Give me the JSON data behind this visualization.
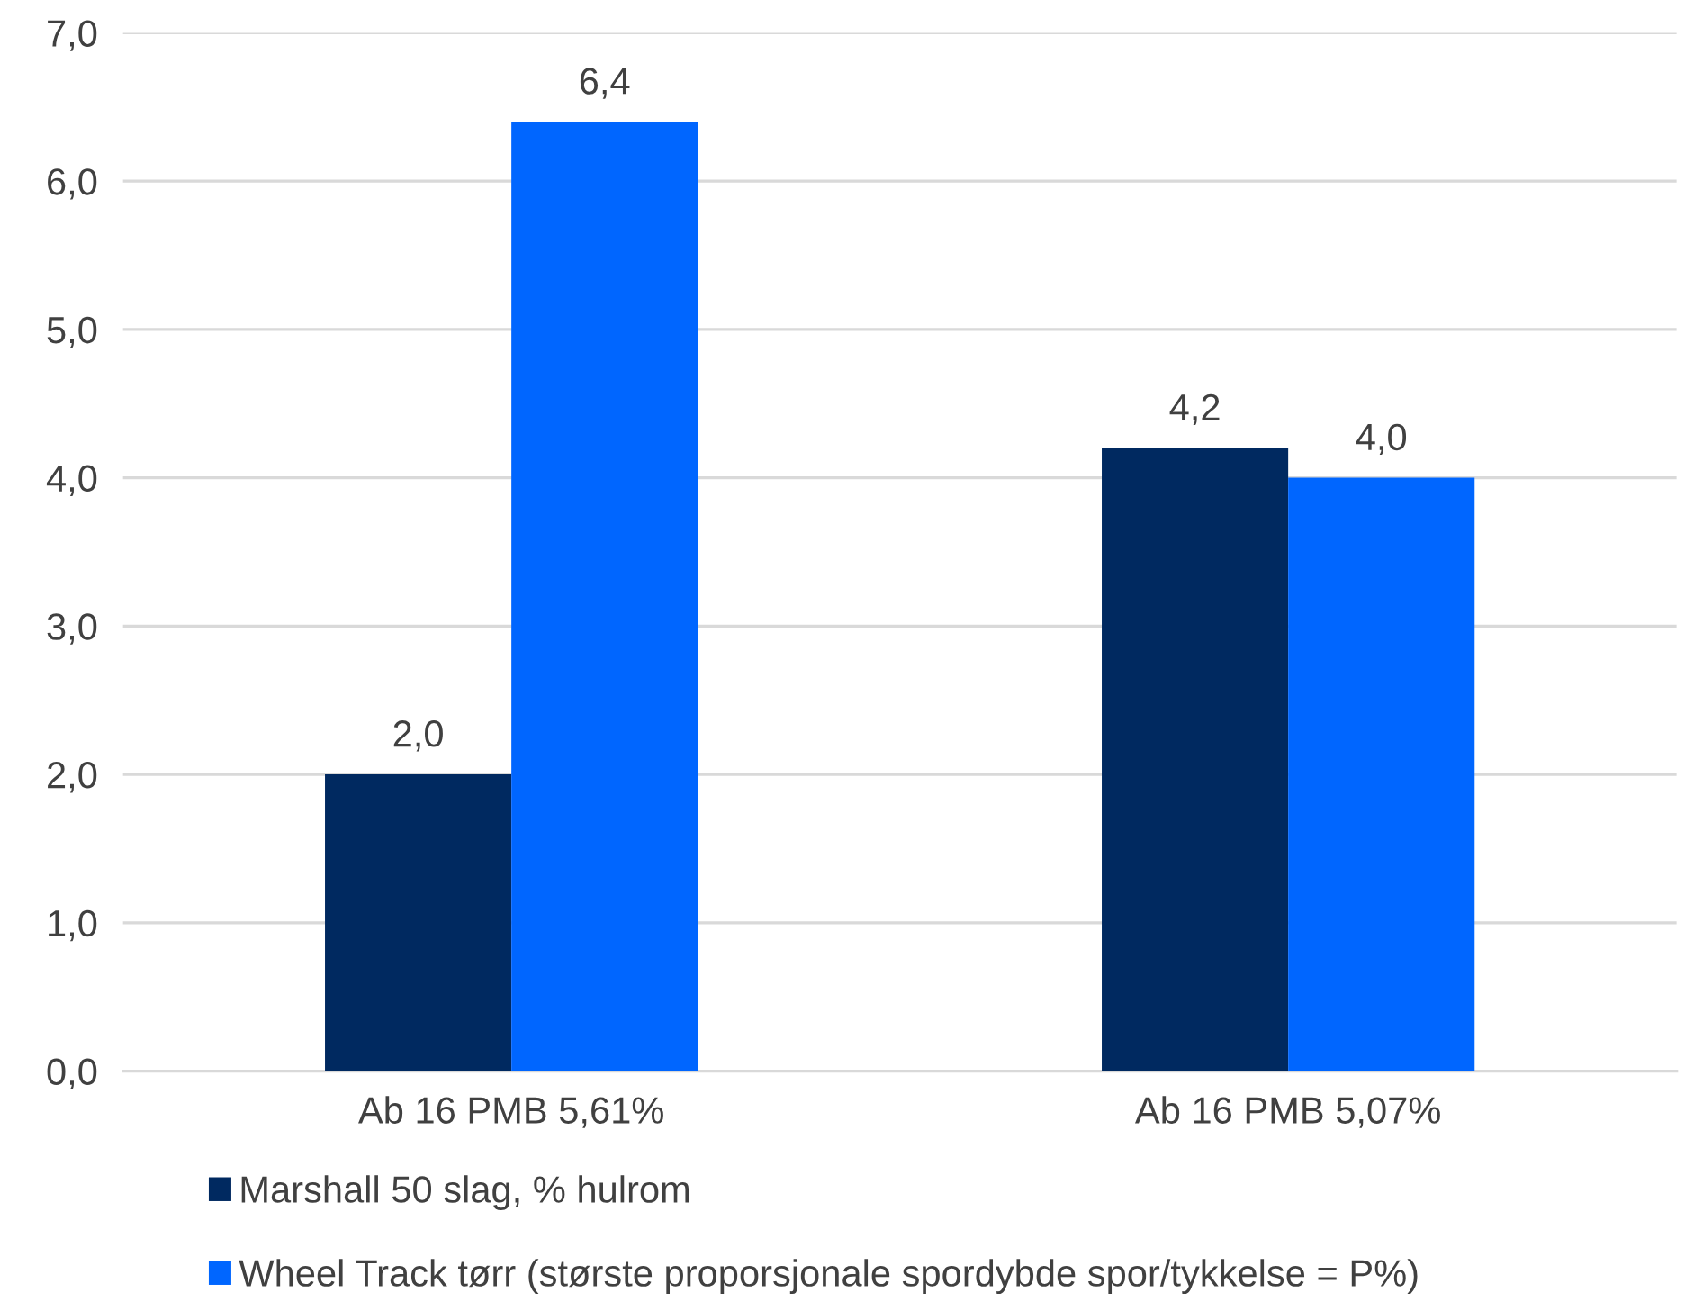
{
  "chart_data": {
    "type": "bar",
    "categories": [
      "Ab 16 PMB 5,61%",
      "Ab 16 PMB 5,07%"
    ],
    "series": [
      {
        "name": "Marshall 50 slag, % hulrom",
        "color": "#002960",
        "values": [
          2.0,
          4.2
        ],
        "value_labels": [
          "2,0",
          "4,2"
        ]
      },
      {
        "name": "Wheel Track tørr (største proporsjonale spordybde spor/tykkelse = P%)",
        "color": "#0066ff",
        "values": [
          6.4,
          4.0
        ],
        "value_labels": [
          "6,4",
          "4,0"
        ]
      }
    ],
    "ylim": [
      0,
      7
    ],
    "yticks": [
      {
        "value": 0,
        "label": "0,0"
      },
      {
        "value": 1,
        "label": "1,0"
      },
      {
        "value": 2,
        "label": "2,0"
      },
      {
        "value": 3,
        "label": "3,0"
      },
      {
        "value": 4,
        "label": "4,0"
      },
      {
        "value": 5,
        "label": "5,0"
      },
      {
        "value": 6,
        "label": "6,0"
      },
      {
        "value": 7,
        "label": "7,0"
      }
    ],
    "grid": "y",
    "legend": "bottom"
  }
}
